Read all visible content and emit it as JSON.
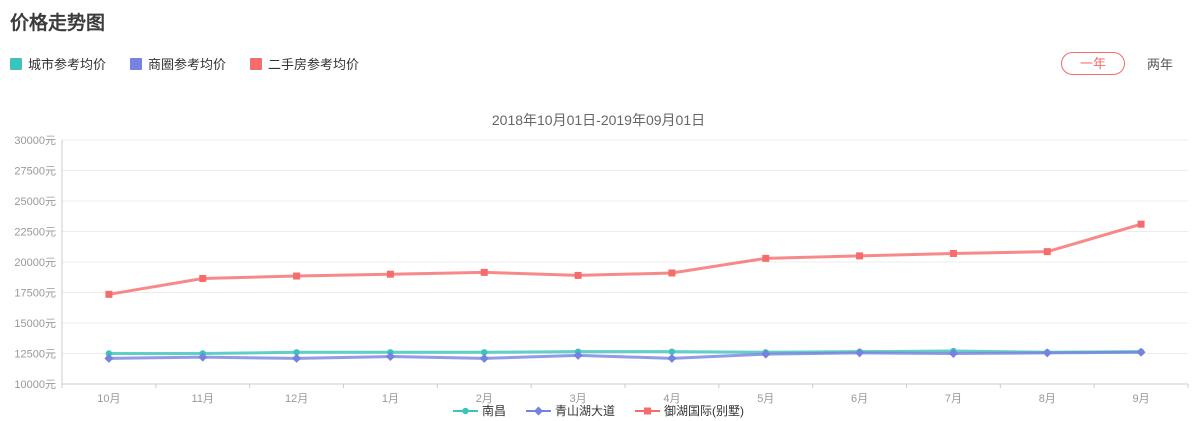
{
  "page_title": "价格走势图",
  "top_legend": {
    "items": [
      {
        "label": "城市参考均价",
        "color": "#3bc3bc"
      },
      {
        "label": "商圈参考均价",
        "color": "#7682e0"
      },
      {
        "label": "二手房参考均价",
        "color": "#f56c6c"
      }
    ]
  },
  "range_buttons": {
    "one_year": "一年",
    "two_years": "两年",
    "active": "一年"
  },
  "chart_data": {
    "type": "line",
    "title": "2018年10月01日-2019年09月01日",
    "x": [
      "10月",
      "11月",
      "12月",
      "1月",
      "2月",
      "3月",
      "4月",
      "5月",
      "6月",
      "7月",
      "8月",
      "9月"
    ],
    "ylim": [
      10000,
      30000
    ],
    "ytick_step": 2500,
    "ytick_suffix": "元",
    "grid": true,
    "legend_position": "bottom-center",
    "series": [
      {
        "name": "南昌",
        "top_legend_label": "城市参考均价",
        "color": "#3bc3bc",
        "marker": "circle",
        "values": [
          12500,
          12500,
          12600,
          12600,
          12600,
          12650,
          12650,
          12600,
          12650,
          12700,
          12600,
          12650
        ]
      },
      {
        "name": "青山湖大道",
        "top_legend_label": "商圈参考均价",
        "color": "#7682e0",
        "marker": "diamond",
        "values": [
          12100,
          12200,
          12100,
          12250,
          12100,
          12350,
          12100,
          12450,
          12550,
          12500,
          12550,
          12600
        ]
      },
      {
        "name": "御湖国际(别墅)",
        "top_legend_label": "二手房参考均价",
        "color": "#f56c6c",
        "marker": "square",
        "values": [
          17350,
          18650,
          18850,
          19000,
          19150,
          18900,
          19100,
          20300,
          20500,
          20700,
          20850,
          23100
        ]
      }
    ]
  }
}
